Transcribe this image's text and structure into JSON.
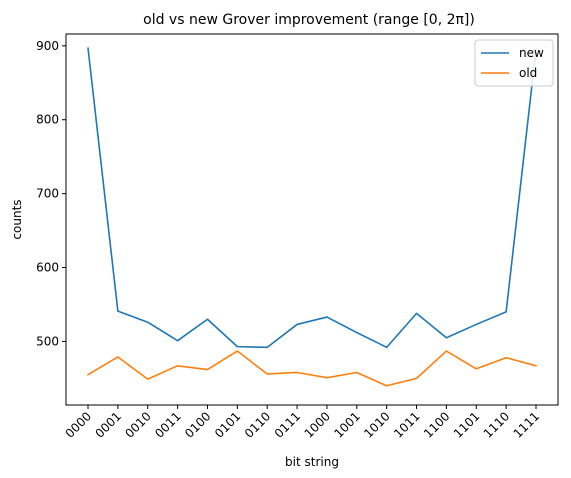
{
  "chart_data": {
    "type": "line",
    "title": "old vs new Grover improvement (range [0, 2π])",
    "xlabel": "bit string",
    "ylabel": "counts",
    "categories": [
      "0000",
      "0001",
      "0010",
      "0011",
      "0100",
      "0101",
      "0110",
      "0111",
      "1000",
      "1001",
      "1010",
      "1011",
      "1100",
      "1101",
      "1110",
      "1111"
    ],
    "yticks": [
      500,
      600,
      700,
      800,
      900
    ],
    "ylim": [
      414,
      916
    ],
    "grid": false,
    "legend_position": "top-right",
    "series": [
      {
        "name": "new",
        "color": "#1f77b4",
        "values": [
          897,
          541,
          526,
          501,
          530,
          493,
          492,
          523,
          533,
          512,
          492,
          538,
          505,
          523,
          540,
          895
        ]
      },
      {
        "name": "old",
        "color": "#ff7f0e",
        "values": [
          455,
          479,
          449,
          467,
          462,
          487,
          456,
          458,
          451,
          458,
          440,
          450,
          487,
          463,
          478,
          467
        ]
      }
    ]
  }
}
